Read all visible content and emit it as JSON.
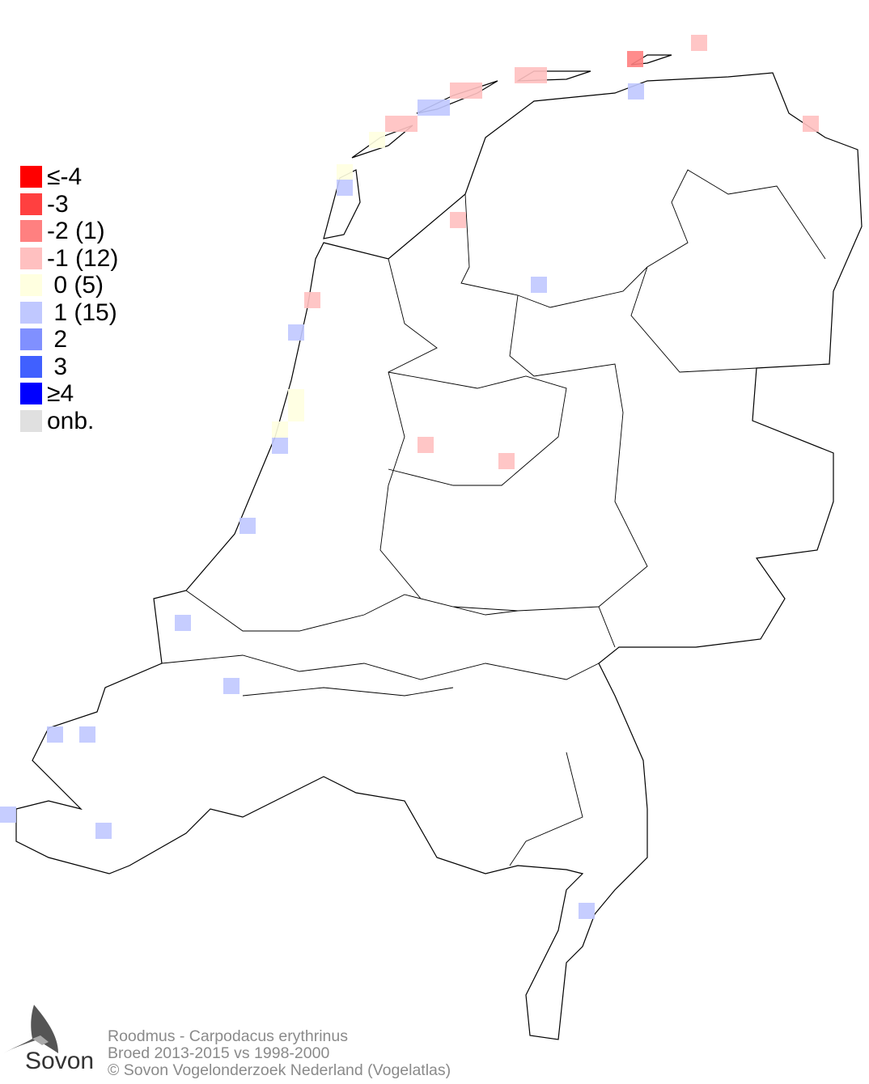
{
  "legend": [
    {
      "label": "≤-4",
      "color": "#ff0000"
    },
    {
      "label": "-3",
      "color": "#ff4040"
    },
    {
      "label": "-2 (1)",
      "color": "#ff8080"
    },
    {
      "label": "-1 (12)",
      "color": "#ffc0c0"
    },
    {
      "label": " 0 (5)",
      "color": "#ffffe0"
    },
    {
      "label": " 1 (15)",
      "color": "#c0c8ff"
    },
    {
      "label": " 2",
      "color": "#8090ff"
    },
    {
      "label": " 3",
      "color": "#4060ff"
    },
    {
      "label": "≥4",
      "color": "#0000ff"
    },
    {
      "label": "onb.",
      "color": "#e0e0e0"
    }
  ],
  "footer": {
    "line1": "Roodmus - Carpodacus erythrinus",
    "line2": "Broed 2013-2015 vs 1998-2000",
    "line3": "© Sovon Vogelonderzoek Nederland (Vogelatlas)"
  },
  "logo": {
    "text": "Sovon"
  }
}
